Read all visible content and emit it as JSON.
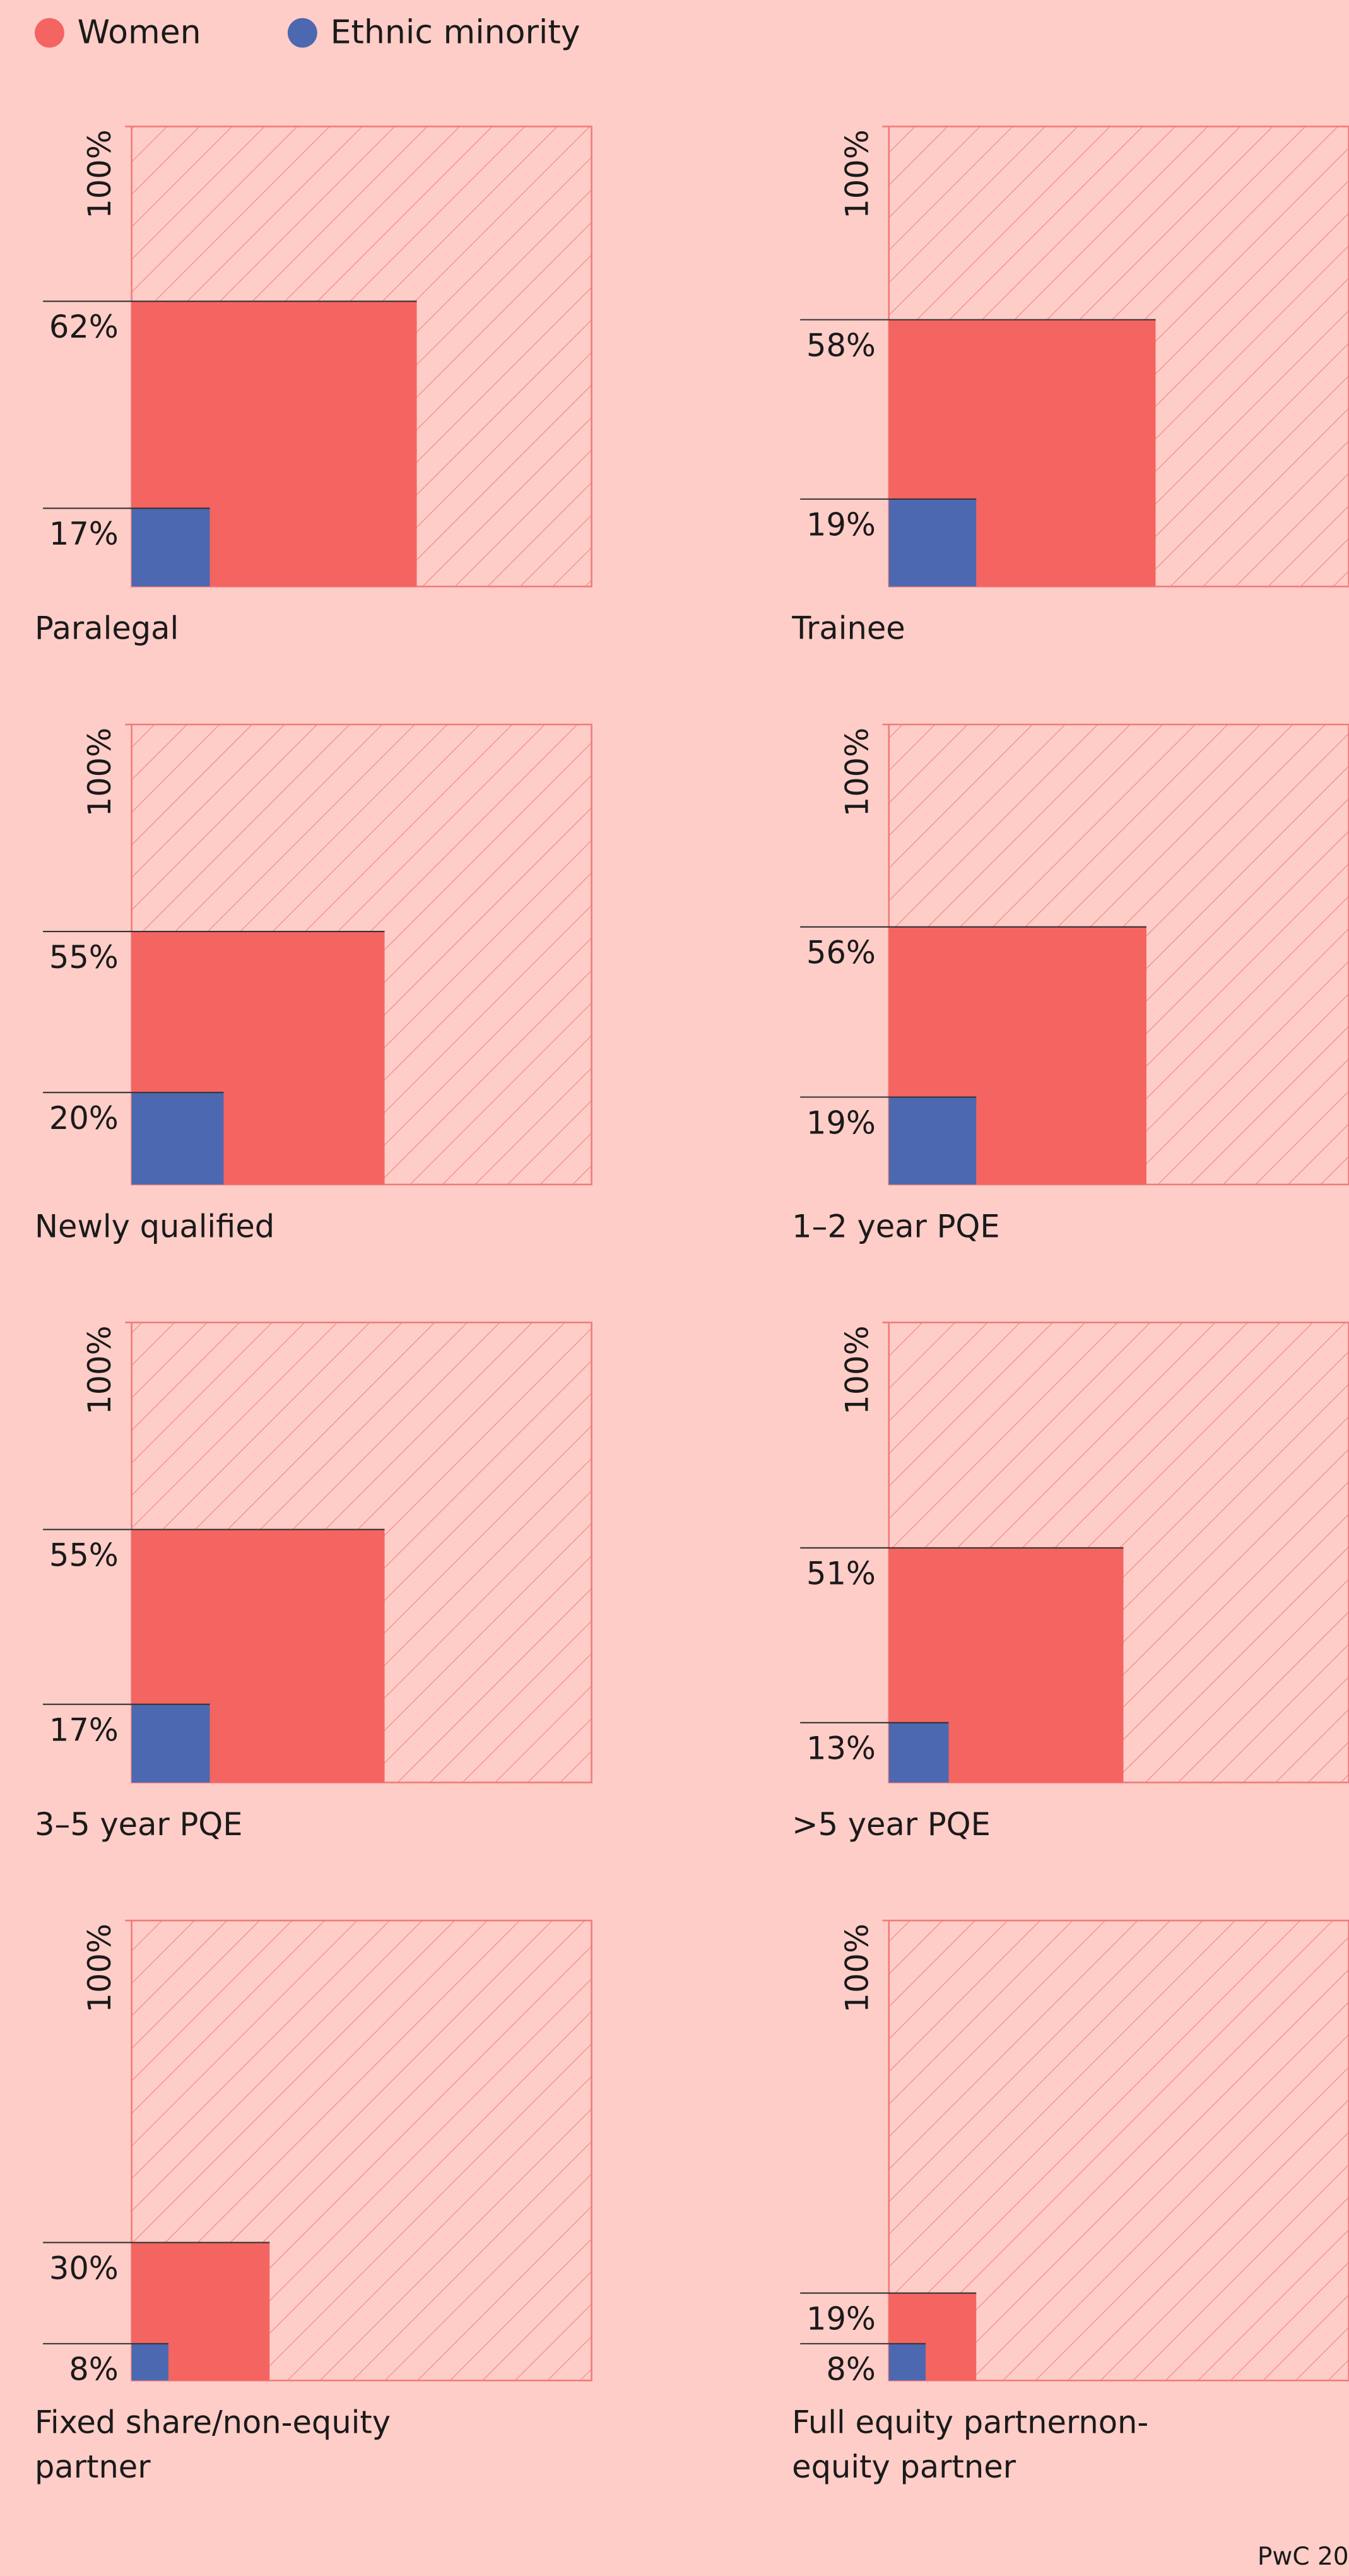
{
  "legend": [
    {
      "name": "Women",
      "color": "#f46461"
    },
    {
      "name": "Ethnic minority",
      "color": "#4c68b0"
    }
  ],
  "chart_data": [
    {
      "type": "square",
      "title": "Paralegal",
      "values": [
        62,
        17
      ],
      "value_labels": [
        "62%",
        "17%"
      ],
      "ylim": [
        0,
        100
      ],
      "yticks": [
        {
          "value": 100,
          "label": "100%"
        }
      ]
    },
    {
      "type": "square",
      "title": "Trainee",
      "values": [
        58,
        19
      ],
      "value_labels": [
        "58%",
        "19%"
      ],
      "ylim": [
        0,
        100
      ],
      "yticks": [
        {
          "value": 100,
          "label": "100%"
        }
      ]
    },
    {
      "type": "square",
      "title": "Newly qualified",
      "values": [
        55,
        20
      ],
      "value_labels": [
        "55%",
        "20%"
      ],
      "ylim": [
        0,
        100
      ],
      "yticks": [
        {
          "value": 100,
          "label": "100%"
        }
      ]
    },
    {
      "type": "square",
      "title": "1–2 year PQE",
      "values": [
        56,
        19
      ],
      "value_labels": [
        "56%",
        "19%"
      ],
      "ylim": [
        0,
        100
      ],
      "yticks": [
        {
          "value": 100,
          "label": "100%"
        }
      ]
    },
    {
      "type": "square",
      "title": "3–5 year PQE",
      "values": [
        55,
        17
      ],
      "value_labels": [
        "55%",
        "17%"
      ],
      "ylim": [
        0,
        100
      ],
      "yticks": [
        {
          "value": 100,
          "label": "100%"
        }
      ]
    },
    {
      "type": "square",
      "title": ">5 year PQE",
      "values": [
        51,
        13
      ],
      "value_labels": [
        "51%",
        "13%"
      ],
      "ylim": [
        0,
        100
      ],
      "yticks": [
        {
          "value": 100,
          "label": "100%"
        }
      ]
    },
    {
      "type": "square",
      "title": "Fixed share/non-equity partner",
      "values": [
        30,
        8
      ],
      "value_labels": [
        "30%",
        "8%"
      ],
      "ylim": [
        0,
        100
      ],
      "yticks": [
        {
          "value": 100,
          "label": "100%"
        }
      ]
    },
    {
      "type": "square",
      "title": "Full equity partnernon-equity partner",
      "values": [
        19,
        8
      ],
      "value_labels": [
        "19%",
        "8%"
      ],
      "ylim": [
        0,
        100
      ],
      "yticks": [
        {
          "value": 100,
          "label": "100%"
        }
      ]
    }
  ],
  "footer": "PwC 20"
}
